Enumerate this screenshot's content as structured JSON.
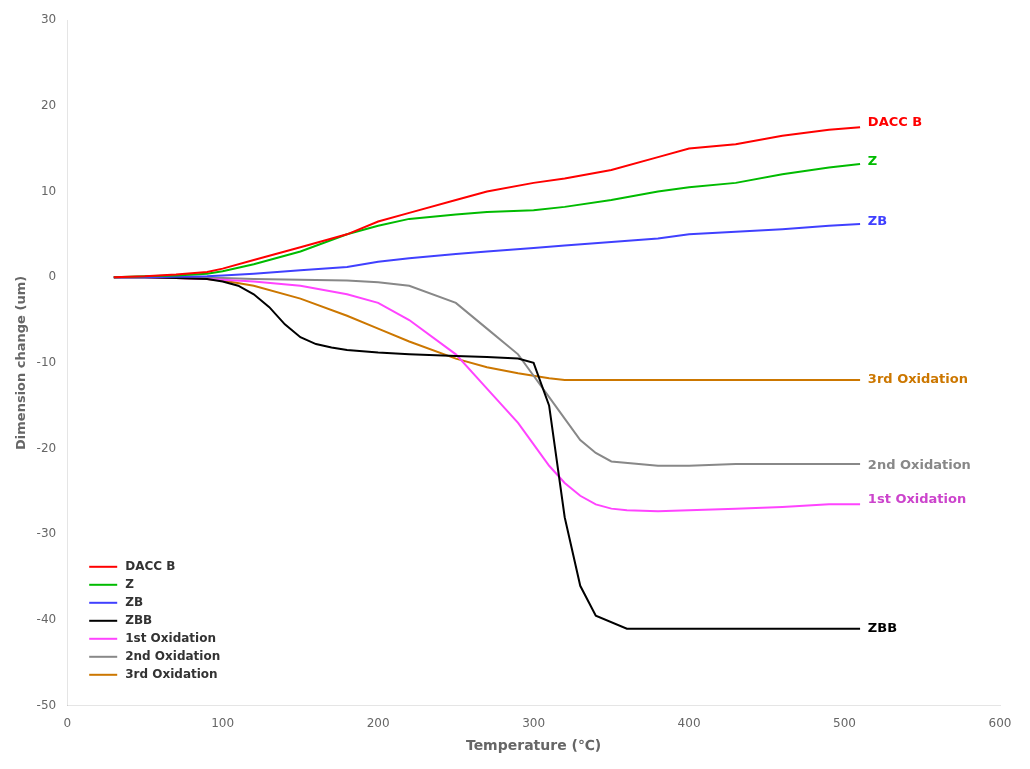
{
  "chart_data": {
    "type": "line",
    "xlabel": "Temperature (℃)",
    "ylabel": "Dimension change (um)",
    "xlim": [
      0,
      600
    ],
    "ylim": [
      -50,
      30
    ],
    "xticks": [
      0,
      100,
      200,
      300,
      400,
      500,
      600
    ],
    "yticks": [
      -50,
      -40,
      -30,
      -20,
      -10,
      0,
      10,
      20,
      30
    ],
    "grid": false,
    "legend": "lower left",
    "series": [
      {
        "name": "DACC B",
        "color": "#ff0000",
        "x": [
          30,
          50,
          70,
          90,
          100,
          120,
          150,
          180,
          200,
          220,
          250,
          270,
          300,
          320,
          350,
          380,
          400,
          430,
          460,
          490,
          510
        ],
        "values": [
          0,
          0.1,
          0.3,
          0.6,
          1.0,
          2.0,
          3.5,
          5.0,
          6.5,
          7.5,
          9.0,
          10.0,
          11.0,
          11.5,
          12.5,
          14.0,
          15.0,
          15.5,
          16.5,
          17.2,
          17.5
        ]
      },
      {
        "name": "Z",
        "color": "#00bb00",
        "x": [
          30,
          50,
          70,
          90,
          100,
          120,
          150,
          180,
          200,
          220,
          250,
          270,
          300,
          320,
          350,
          380,
          400,
          430,
          460,
          490,
          510
        ],
        "values": [
          0,
          0.1,
          0.2,
          0.4,
          0.7,
          1.5,
          3.0,
          5.0,
          6.0,
          6.8,
          7.3,
          7.6,
          7.8,
          8.2,
          9.0,
          10.0,
          10.5,
          11.0,
          12.0,
          12.8,
          13.2
        ]
      },
      {
        "name": "ZB",
        "color": "#4040ff",
        "x": [
          30,
          50,
          70,
          90,
          100,
          120,
          150,
          180,
          200,
          220,
          250,
          270,
          300,
          320,
          350,
          380,
          400,
          430,
          460,
          490,
          510
        ],
        "values": [
          0,
          0.0,
          0.05,
          0.1,
          0.2,
          0.4,
          0.8,
          1.2,
          1.8,
          2.2,
          2.7,
          3.0,
          3.4,
          3.7,
          4.1,
          4.5,
          5.0,
          5.3,
          5.6,
          6.0,
          6.2
        ]
      },
      {
        "name": "ZBB",
        "color": "#000000",
        "x": [
          30,
          50,
          70,
          90,
          100,
          110,
          120,
          130,
          140,
          150,
          160,
          170,
          180,
          200,
          220,
          250,
          270,
          290,
          300,
          310,
          320,
          330,
          340,
          360,
          380,
          400,
          430,
          460,
          490,
          510
        ],
        "values": [
          0,
          0.0,
          -0.1,
          -0.2,
          -0.5,
          -1.0,
          -2.0,
          -3.5,
          -5.5,
          -7.0,
          -7.8,
          -8.2,
          -8.5,
          -8.8,
          -9.0,
          -9.2,
          -9.3,
          -9.5,
          -10.0,
          -15.0,
          -28.0,
          -36.0,
          -39.5,
          -41.0,
          -41.0,
          -41.0,
          -41.0,
          -41.0,
          -41.0,
          -41.0
        ]
      },
      {
        "name": "1st Oxidation",
        "color": "#ff44ff",
        "x": [
          30,
          50,
          70,
          90,
          100,
          120,
          150,
          180,
          200,
          220,
          250,
          270,
          290,
          300,
          310,
          320,
          330,
          340,
          350,
          360,
          380,
          400,
          430,
          460,
          490,
          510
        ],
        "values": [
          0,
          0.0,
          -0.1,
          -0.2,
          -0.3,
          -0.5,
          -1.0,
          -2.0,
          -3.0,
          -5.0,
          -9.0,
          -13.0,
          -17.0,
          -19.5,
          -22.0,
          -24.0,
          -25.5,
          -26.5,
          -27.0,
          -27.2,
          -27.3,
          -27.2,
          -27.0,
          -26.8,
          -26.5,
          -26.5
        ]
      },
      {
        "name": "2nd Oxidation",
        "color": "#888888",
        "x": [
          30,
          50,
          70,
          90,
          100,
          120,
          150,
          180,
          200,
          220,
          250,
          270,
          290,
          300,
          310,
          320,
          330,
          340,
          350,
          380,
          400,
          430,
          460,
          490,
          510
        ],
        "values": [
          0,
          0.0,
          0.0,
          -0.1,
          -0.1,
          -0.2,
          -0.3,
          -0.4,
          -0.6,
          -1.0,
          -3.0,
          -6.0,
          -9.0,
          -11.5,
          -14.0,
          -16.5,
          -19.0,
          -20.5,
          -21.5,
          -22.0,
          -22.0,
          -21.8,
          -21.8,
          -21.8,
          -21.8
        ]
      },
      {
        "name": "3rd Oxidation",
        "color": "#cc7700",
        "x": [
          30,
          50,
          70,
          90,
          100,
          120,
          150,
          180,
          200,
          220,
          250,
          270,
          290,
          300,
          310,
          320,
          330,
          340,
          360,
          380,
          400,
          430,
          460,
          490,
          510
        ],
        "values": [
          0,
          0.0,
          -0.1,
          -0.2,
          -0.4,
          -1.0,
          -2.5,
          -4.5,
          -6.0,
          -7.5,
          -9.5,
          -10.5,
          -11.2,
          -11.5,
          -11.8,
          -12.0,
          -12.0,
          -12.0,
          -12.0,
          -12.0,
          -12.0,
          -12.0,
          -12.0,
          -12.0,
          -12.0
        ]
      }
    ],
    "annotations": [
      {
        "text": "DACC B",
        "x": 515,
        "y": 18.0,
        "color": "#ff0000"
      },
      {
        "text": "Z",
        "x": 515,
        "y": 13.5,
        "color": "#00bb00"
      },
      {
        "text": "ZB",
        "x": 515,
        "y": 6.5,
        "color": "#4040ff"
      },
      {
        "text": "ZBB",
        "x": 515,
        "y": -41.0,
        "color": "#000000"
      },
      {
        "text": "3rd Oxidation",
        "x": 515,
        "y": -12.0,
        "color": "#cc7700"
      },
      {
        "text": "1st Oxidation",
        "x": 515,
        "y": -26.0,
        "color": "#cc44cc"
      },
      {
        "text": "2nd Oxidation",
        "x": 515,
        "y": -22.0,
        "color": "#888888"
      }
    ]
  }
}
